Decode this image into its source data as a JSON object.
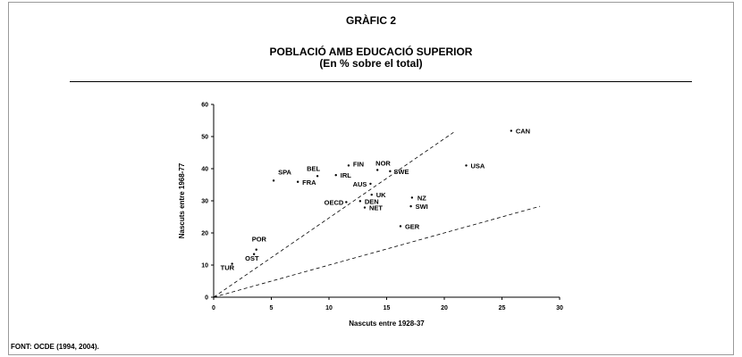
{
  "header": {
    "graphic_label": "GRÀFIC 2",
    "title": "POBLACIÓ AMB EDUCACIÓ SUPERIOR",
    "subtitle": "(En % sobre el total)"
  },
  "footer": {
    "source": "FONT: OCDE (1994, 2004)."
  },
  "chart_data": {
    "type": "scatter",
    "title": "POBLACIÓ AMB EDUCACIÓ SUPERIOR",
    "subtitle": "(En % sobre el total)",
    "xlabel": "Nascuts entre 1928-37",
    "ylabel": "Nascuts entre 1968-77",
    "xlim": [
      0,
      30
    ],
    "ylim": [
      0,
      60
    ],
    "xticks": [
      0,
      5,
      10,
      15,
      20,
      25,
      30
    ],
    "yticks": [
      0,
      10,
      20,
      30,
      40,
      50,
      60
    ],
    "grid": false,
    "legend": "none",
    "points": [
      {
        "label": "CAN",
        "x": 25.8,
        "y": 51.8
      },
      {
        "label": "USA",
        "x": 21.9,
        "y": 41.0
      },
      {
        "label": "NOR",
        "x": 14.2,
        "y": 39.6
      },
      {
        "label": "SWE",
        "x": 15.3,
        "y": 39.2
      },
      {
        "label": "FIN",
        "x": 11.7,
        "y": 41.0
      },
      {
        "label": "BEL",
        "x": 9.0,
        "y": 37.7
      },
      {
        "label": "IRL",
        "x": 10.6,
        "y": 38.0
      },
      {
        "label": "SPA",
        "x": 5.2,
        "y": 36.3
      },
      {
        "label": "FRA",
        "x": 7.3,
        "y": 35.9
      },
      {
        "label": "AUS",
        "x": 13.6,
        "y": 35.3
      },
      {
        "label": "UK",
        "x": 13.7,
        "y": 31.9
      },
      {
        "label": "NZ",
        "x": 17.2,
        "y": 31.0
      },
      {
        "label": "DEN",
        "x": 12.7,
        "y": 29.9
      },
      {
        "label": "OECD",
        "x": 11.5,
        "y": 29.6
      },
      {
        "label": "SWI",
        "x": 17.1,
        "y": 28.3
      },
      {
        "label": "NET",
        "x": 13.1,
        "y": 27.9
      },
      {
        "label": "GER",
        "x": 16.2,
        "y": 22.1
      },
      {
        "label": "POR",
        "x": 3.7,
        "y": 14.8
      },
      {
        "label": "OST",
        "x": 3.5,
        "y": 13.4
      },
      {
        "label": "TUR",
        "x": 1.6,
        "y": 10.4
      }
    ],
    "reference_lines": [
      {
        "x": [
          0,
          20.8
        ],
        "y": [
          0,
          51.3
        ]
      },
      {
        "x": [
          0,
          28.3
        ],
        "y": [
          0,
          28.3
        ]
      }
    ],
    "colors": {
      "marks": "#000000",
      "background": "#ffffff"
    }
  }
}
